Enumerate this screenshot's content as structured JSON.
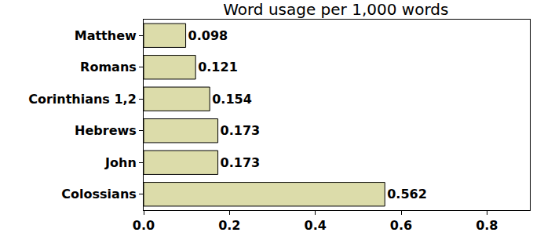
{
  "chart_data": {
    "type": "bar",
    "orientation": "horizontal",
    "title": "Word usage per 1,000 words",
    "categories": [
      "Matthew",
      "Romans",
      "Corinthians 1,2",
      "Hebrews",
      "John",
      "Colossians"
    ],
    "values": [
      0.098,
      0.121,
      0.154,
      0.173,
      0.173,
      0.562
    ],
    "color": "#dcdcaa",
    "xlim": [
      0,
      0.9
    ],
    "xticks": [
      {
        "value": 0,
        "label": "0.0"
      },
      {
        "value": 0.2,
        "label": "0.2"
      },
      {
        "value": 0.4,
        "label": "0.4"
      },
      {
        "value": 0.6,
        "label": "0.6"
      },
      {
        "value": 0.8,
        "label": "0.8"
      }
    ],
    "grid": false,
    "data_labels": true
  }
}
